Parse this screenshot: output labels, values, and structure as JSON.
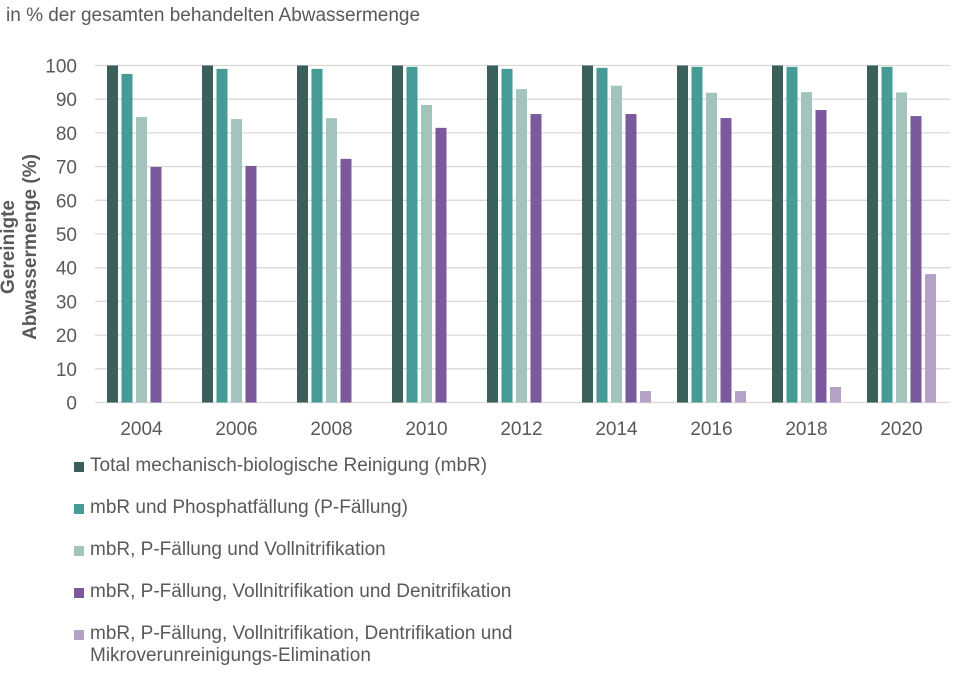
{
  "chart_data": {
    "type": "bar",
    "subtitle": "in % der gesamten behandelten Abwassermenge",
    "ylabel": "Gereinigte Abwassermenge (%)",
    "xlabel": "",
    "ylim": [
      0,
      100
    ],
    "yticks": [
      0,
      10,
      20,
      30,
      40,
      50,
      60,
      70,
      80,
      90,
      100
    ],
    "grid": true,
    "legend_position": "bottom",
    "categories": [
      "2004",
      "2006",
      "2008",
      "2010",
      "2012",
      "2014",
      "2016",
      "2018",
      "2020"
    ],
    "series": [
      {
        "name": "Total mechanisch-biologische Reinigung (mbR)",
        "color": "#3b5f5a",
        "values": [
          100,
          100,
          100,
          100,
          100,
          100,
          100,
          100,
          100
        ]
      },
      {
        "name": "mbR und Phosphatfällung (P-Fällung)",
        "color": "#469b96",
        "values": [
          97.5,
          99,
          99,
          99.6,
          99,
          99.3,
          99.6,
          99.6,
          99.6
        ]
      },
      {
        "name": "mbR, P-Fällung und Vollnitrifikation",
        "color": "#a3c3bd",
        "values": [
          84.7,
          84.1,
          84.4,
          88.3,
          93.0,
          94.0,
          91.9,
          92.1,
          92.0
        ]
      },
      {
        "name": "mbR, P-Fällung, Vollnitrifikation und Denitrifikation",
        "color": "#7a5a9c",
        "values": [
          69.9,
          70.2,
          72.3,
          81.5,
          85.6,
          85.6,
          84.4,
          86.8,
          85.0
        ]
      },
      {
        "name": "mbR, P-Fällung, Vollnitrifikation, Dentrifikation und Mikroverunreinigungs-Elimination",
        "color": "#b5a1c6",
        "values": [
          0,
          0,
          0,
          0,
          0,
          3.4,
          3.4,
          4.6,
          38.1
        ]
      }
    ]
  }
}
